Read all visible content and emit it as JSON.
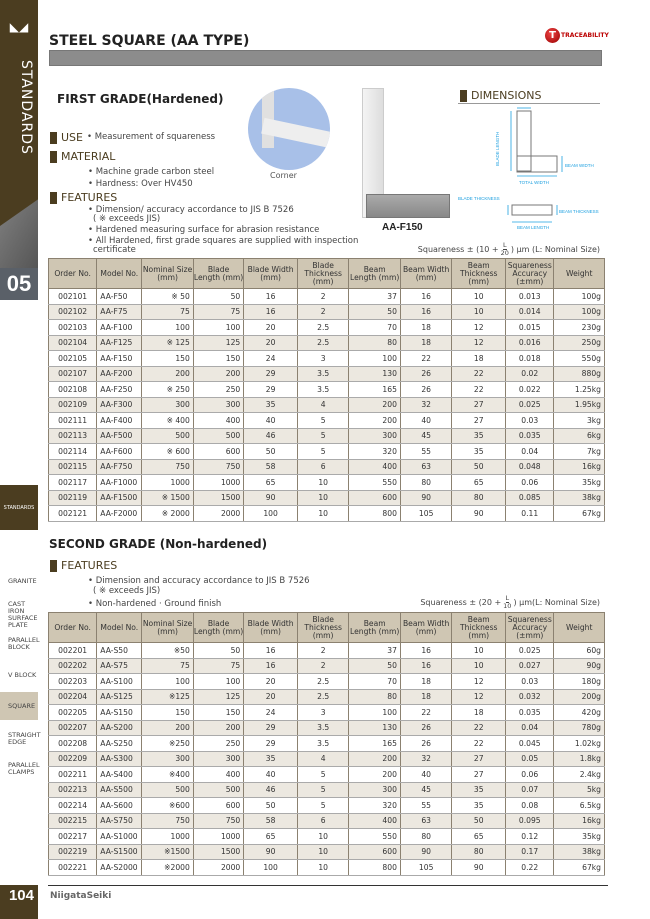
{
  "sidebar": {
    "section_title": "STANDARDS",
    "chapter": "05",
    "chapter_tab": "STANDARDS",
    "nav": [
      "GRANITE",
      "CAST IRON SURFACE PLATE",
      "PARALLEL BLOCK",
      "V BLOCK",
      "SQUARE",
      "STRAIGHT EDGE",
      "PARALLEL CLAMPS"
    ],
    "selected": "SQUARE",
    "page_number": "104"
  },
  "brand": {
    "logo_text": "NiigataSeiki",
    "traceability_logo": "TRACEABILITY"
  },
  "colors": {
    "brand_brown": "#4b3d20",
    "header_fill": "#cfc6b3",
    "alt_row": "#ece8e0",
    "dimension_blue": "#1ea0e0"
  },
  "title": "STEEL SQUARE (AA TYPE)",
  "first": {
    "heading": "FIRST GRADE(Hardened)",
    "use_label": "USE",
    "use_text": "• Measurement of squareness",
    "material_label": "MATERIAL",
    "material": [
      "• Machine grade carbon steel",
      "• Hardness: Over HV450"
    ],
    "features_label": "FEATURES",
    "features": [
      "• Dimension/ accuracy accordance to JIS B 7526",
      "( ※ exceeds JIS)",
      "• Hardened measuring surface for abrasion resistance",
      "• All Hardened, first grade squares are supplied with inspection",
      "certificate"
    ],
    "corner_caption": "Corner",
    "model_caption": "AA-F150",
    "dimensions_label": "DIMENSIONS",
    "dim_labels": {
      "blade_length": "BLADE LENGTH",
      "beam_width": "BEAM WIDTH",
      "total_width": "TOTAL WIDTH",
      "blade_thickness": "BLADE THICKNESS",
      "beam_thickness": "BEAM THICKNESS",
      "beam_length": "BEAM LENGTH"
    },
    "formula": {
      "prefix": "Squareness ± (10 +",
      "num": "L",
      "den": "20",
      "suffix": ") μm (L: Nominal Size)"
    }
  },
  "second": {
    "heading": "SECOND GRADE (Non-hardened)",
    "features_label": "FEATURES",
    "features": [
      "• Dimension and accuracy accordance to JIS B 7526",
      "( ※ exceeds JIS)",
      "• Non-hardened · Ground finish"
    ],
    "formula": {
      "prefix": "Squareness ± (20 +",
      "num": "L",
      "den": "10",
      "suffix": ") μm(L: Nominal Size)"
    }
  },
  "columns": [
    "Order No.",
    "Model No.",
    "Nominal Size (mm)",
    "Blade Length (mm)",
    "Blade Width (mm)",
    "Blade Thickness (mm)",
    "Beam Length (mm)",
    "Beam Width (mm)",
    "Beam Thickness (mm)",
    "Squareness Accuracy (±mm)",
    "Weight"
  ],
  "table1": [
    [
      "002101",
      "AA-F50",
      "※ 50",
      "50",
      "16",
      "2",
      "37",
      "16",
      "10",
      "0.013",
      "100g"
    ],
    [
      "002102",
      "AA-F75",
      "75",
      "75",
      "16",
      "2",
      "50",
      "16",
      "10",
      "0.014",
      "100g"
    ],
    [
      "002103",
      "AA-F100",
      "100",
      "100",
      "20",
      "2.5",
      "70",
      "18",
      "12",
      "0.015",
      "230g"
    ],
    [
      "002104",
      "AA-F125",
      "※ 125",
      "125",
      "20",
      "2.5",
      "80",
      "18",
      "12",
      "0.016",
      "250g"
    ],
    [
      "002105",
      "AA-F150",
      "150",
      "150",
      "24",
      "3",
      "100",
      "22",
      "18",
      "0.018",
      "550g"
    ],
    [
      "002107",
      "AA-F200",
      "200",
      "200",
      "29",
      "3.5",
      "130",
      "26",
      "22",
      "0.02",
      "880g"
    ],
    [
      "002108",
      "AA-F250",
      "※ 250",
      "250",
      "29",
      "3.5",
      "165",
      "26",
      "22",
      "0.022",
      "1.25kg"
    ],
    [
      "002109",
      "AA-F300",
      "300",
      "300",
      "35",
      "4",
      "200",
      "32",
      "27",
      "0.025",
      "1.95kg"
    ],
    [
      "002111",
      "AA-F400",
      "※ 400",
      "400",
      "40",
      "5",
      "200",
      "40",
      "27",
      "0.03",
      "3kg"
    ],
    [
      "002113",
      "AA-F500",
      "500",
      "500",
      "46",
      "5",
      "300",
      "45",
      "35",
      "0.035",
      "6kg"
    ],
    [
      "002114",
      "AA-F600",
      "※ 600",
      "600",
      "50",
      "5",
      "320",
      "55",
      "35",
      "0.04",
      "7kg"
    ],
    [
      "002115",
      "AA-F750",
      "750",
      "750",
      "58",
      "6",
      "400",
      "63",
      "50",
      "0.048",
      "16kg"
    ],
    [
      "002117",
      "AA-F1000",
      "1000",
      "1000",
      "65",
      "10",
      "550",
      "80",
      "65",
      "0.06",
      "35kg"
    ],
    [
      "002119",
      "AA-F1500",
      "※ 1500",
      "1500",
      "90",
      "10",
      "600",
      "90",
      "80",
      "0.085",
      "38kg"
    ],
    [
      "002121",
      "AA-F2000",
      "※ 2000",
      "2000",
      "100",
      "10",
      "800",
      "105",
      "90",
      "0.11",
      "67kg"
    ]
  ],
  "table2": [
    [
      "002201",
      "AA-S50",
      "※50",
      "50",
      "16",
      "2",
      "37",
      "16",
      "10",
      "0.025",
      "60g"
    ],
    [
      "002202",
      "AA-S75",
      "75",
      "75",
      "16",
      "2",
      "50",
      "16",
      "10",
      "0.027",
      "90g"
    ],
    [
      "002203",
      "AA-S100",
      "100",
      "100",
      "20",
      "2.5",
      "70",
      "18",
      "12",
      "0.03",
      "180g"
    ],
    [
      "002204",
      "AA-S125",
      "※125",
      "125",
      "20",
      "2.5",
      "80",
      "18",
      "12",
      "0.032",
      "200g"
    ],
    [
      "002205",
      "AA-S150",
      "150",
      "150",
      "24",
      "3",
      "100",
      "22",
      "18",
      "0.035",
      "420g"
    ],
    [
      "002207",
      "AA-S200",
      "200",
      "200",
      "29",
      "3.5",
      "130",
      "26",
      "22",
      "0.04",
      "780g"
    ],
    [
      "002208",
      "AA-S250",
      "※250",
      "250",
      "29",
      "3.5",
      "165",
      "26",
      "22",
      "0.045",
      "1.02kg"
    ],
    [
      "002209",
      "AA-S300",
      "300",
      "300",
      "35",
      "4",
      "200",
      "32",
      "27",
      "0.05",
      "1.8kg"
    ],
    [
      "002211",
      "AA-S400",
      "※400",
      "400",
      "40",
      "5",
      "200",
      "40",
      "27",
      "0.06",
      "2.4kg"
    ],
    [
      "002213",
      "AA-S500",
      "500",
      "500",
      "46",
      "5",
      "300",
      "45",
      "35",
      "0.07",
      "5kg"
    ],
    [
      "002214",
      "AA-S600",
      "※600",
      "600",
      "50",
      "5",
      "320",
      "55",
      "35",
      "0.08",
      "6.5kg"
    ],
    [
      "002215",
      "AA-S750",
      "750",
      "750",
      "58",
      "6",
      "400",
      "63",
      "50",
      "0.095",
      "16kg"
    ],
    [
      "002217",
      "AA-S1000",
      "1000",
      "1000",
      "65",
      "10",
      "550",
      "80",
      "65",
      "0.12",
      "35kg"
    ],
    [
      "002219",
      "AA-S1500",
      "※1500",
      "1500",
      "90",
      "10",
      "600",
      "90",
      "80",
      "0.17",
      "38kg"
    ],
    [
      "002221",
      "AA-S2000",
      "※2000",
      "2000",
      "100",
      "10",
      "800",
      "105",
      "90",
      "0.22",
      "67kg"
    ]
  ]
}
